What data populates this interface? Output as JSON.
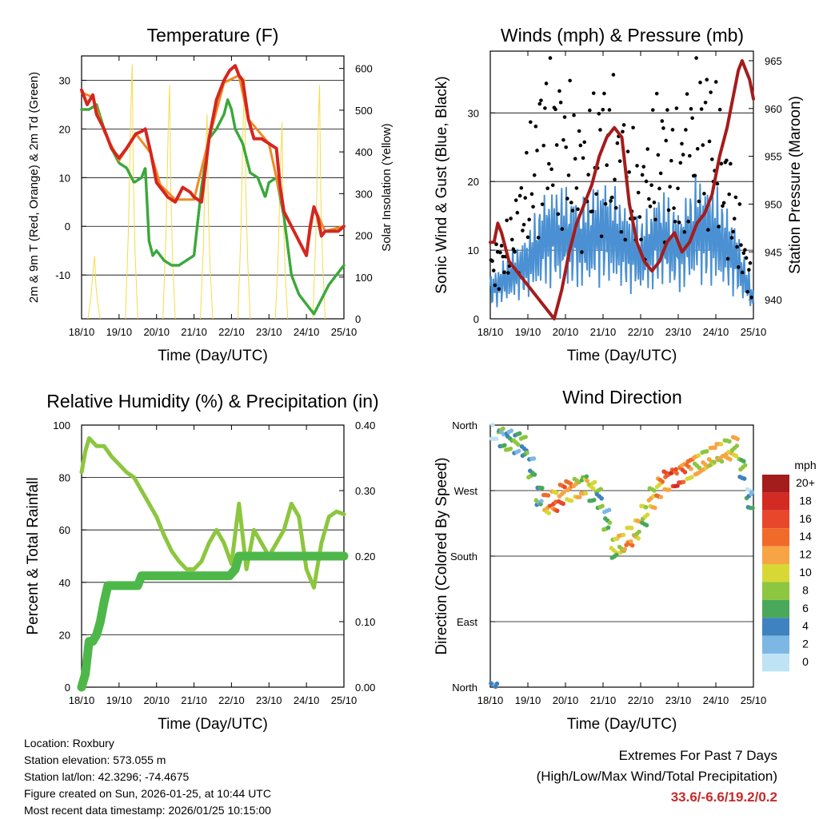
{
  "days": [
    "18/10",
    "19/10",
    "20/10",
    "21/10",
    "22/10",
    "23/10",
    "24/10",
    "25/10"
  ],
  "x_axis_label": "Time (Day/UTC)",
  "chart_data": [
    {
      "id": "temperature",
      "type": "line",
      "title": "Temperature (F)",
      "ylabel_left": "2m & 9m T (Red, Orange) & 2m Td (Green)",
      "ylabel_right": "Solar Insolation (Yellow)",
      "ylim_left": [
        -19,
        35
      ],
      "ylim_right": [
        0,
        630
      ],
      "yticks_left": [
        -10,
        0,
        10,
        20,
        30
      ],
      "yticks_right": [
        0,
        100,
        200,
        300,
        400,
        500,
        600
      ],
      "gridlines": [
        -10,
        0,
        10,
        20,
        30
      ],
      "x_range_days": [
        0,
        7
      ],
      "series": [
        {
          "name": "2m T",
          "color": "#d4271f",
          "x": [
            0,
            0.15,
            0.3,
            0.4,
            0.6,
            0.8,
            1.0,
            1.2,
            1.45,
            1.6,
            1.7,
            1.85,
            2.0,
            2.1,
            2.3,
            2.5,
            2.7,
            2.9,
            3.0,
            3.2,
            3.4,
            3.6,
            3.8,
            3.95,
            4.1,
            4.2,
            4.3,
            4.45,
            4.6,
            4.8,
            5.0,
            5.2,
            5.3,
            5.4,
            5.6,
            5.8,
            6.0,
            6.1,
            6.2,
            6.3,
            6.4,
            6.5,
            6.7,
            6.85,
            7.0
          ],
          "y": [
            28,
            25,
            27,
            23,
            20,
            16,
            14,
            16,
            19,
            19.5,
            20,
            15,
            9,
            8,
            6,
            5,
            8,
            7,
            6,
            5,
            18,
            26,
            30,
            32,
            33,
            31,
            30,
            22,
            18,
            18,
            17,
            16,
            8,
            3,
            0,
            -3,
            -6,
            0,
            4,
            2,
            -2,
            -1,
            -1,
            -1,
            0
          ]
        },
        {
          "name": "9m T",
          "color": "#f08a24",
          "x": [
            0,
            0.3,
            0.6,
            1.0,
            1.45,
            1.85,
            2.1,
            2.5,
            3.0,
            3.4,
            3.8,
            4.2,
            4.45,
            5.0,
            5.4,
            6.0,
            6.2,
            6.5,
            7.0
          ],
          "y": [
            27.5,
            26.5,
            19.5,
            13.5,
            19,
            15,
            8.5,
            5.5,
            5.5,
            18,
            29.5,
            31,
            22,
            17,
            3,
            -6,
            4,
            -1,
            0
          ]
        },
        {
          "name": "2m Td",
          "color": "#3aa83a",
          "style": "dotted",
          "x": [
            0,
            0.2,
            0.4,
            0.6,
            0.8,
            1.0,
            1.2,
            1.4,
            1.6,
            1.7,
            1.8,
            1.9,
            2.0,
            2.2,
            2.4,
            2.6,
            2.8,
            3.0,
            3.2,
            3.4,
            3.6,
            3.8,
            3.9,
            4.0,
            4.1,
            4.3,
            4.5,
            4.7,
            4.9,
            5.0,
            5.2,
            5.4,
            5.6,
            5.8,
            6.0,
            6.2,
            6.4,
            6.6,
            6.8,
            7.0
          ],
          "y": [
            24,
            24,
            25,
            20,
            16,
            13,
            12,
            9,
            10,
            12,
            -3,
            -6,
            -5,
            -7,
            -8,
            -8,
            -7,
            -6,
            8,
            18,
            20,
            23,
            26,
            24,
            20,
            17,
            11,
            10,
            6,
            9,
            10,
            2,
            -10,
            -14,
            -16,
            -18,
            -15,
            -12,
            -10,
            -8
          ]
        },
        {
          "name": "Solar Insolation",
          "color": "#f2dc4a",
          "axis": "right",
          "peaks_x": [
            0.35,
            1.35,
            2.35,
            3.35,
            4.35,
            5.35,
            6.35
          ],
          "peaks_y": [
            150,
            610,
            560,
            490,
            580,
            470,
            560
          ]
        }
      ]
    },
    {
      "id": "winds",
      "type": "line",
      "title": "Winds (mph) & Pressure (mb)",
      "ylabel_left": "Sonic Wind & Gust (Blue, Black)",
      "ylabel_right": "Station Pressure (Maroon)",
      "ylim_left": [
        0,
        39
      ],
      "ylim_right": [
        938,
        966
      ],
      "yticks_left": [
        0,
        10,
        20,
        30
      ],
      "yticks_right": [
        940,
        945,
        950,
        955,
        960,
        965
      ],
      "gridlines": [
        10,
        20,
        30
      ],
      "x_range_days": [
        0,
        7
      ],
      "series": [
        {
          "name": "Sonic Wind",
          "color": "#4a90d2",
          "x": [
            0,
            0.5,
            1.0,
            1.5,
            2.0,
            2.5,
            3.0,
            3.5,
            4.0,
            4.5,
            5.0,
            5.5,
            6.0,
            6.5,
            7.0
          ],
          "y": [
            4,
            6,
            8,
            12,
            12,
            11,
            13,
            11,
            9,
            12,
            10,
            13,
            12,
            9,
            3
          ]
        },
        {
          "name": "Gust",
          "color": "#000000",
          "x": [
            0,
            0.5,
            1.0,
            1.5,
            2.0,
            2.5,
            3.0,
            3.5,
            4.0,
            4.5,
            5.0,
            5.5,
            6.0,
            6.5,
            7.0
          ],
          "y": [
            7,
            10,
            18,
            28,
            24,
            20,
            25,
            22,
            16,
            24,
            20,
            28,
            24,
            14,
            4
          ]
        },
        {
          "name": "Station Pressure",
          "color": "#a51c1c",
          "axis": "right",
          "x": [
            0,
            0.1,
            0.2,
            0.3,
            0.5,
            0.7,
            0.9,
            1.1,
            1.3,
            1.5,
            1.7,
            1.9,
            2.1,
            2.3,
            2.5,
            2.7,
            2.9,
            3.1,
            3.3,
            3.5,
            3.7,
            3.9,
            4.1,
            4.3,
            4.5,
            4.7,
            4.9,
            5.1,
            5.3,
            5.5,
            5.7,
            5.9,
            6.1,
            6.3,
            6.5,
            6.6,
            6.7,
            6.9,
            7.0
          ],
          "y": [
            946,
            946,
            948,
            947,
            944,
            943,
            942,
            941,
            940,
            939,
            938,
            941,
            945,
            948,
            950,
            952,
            955,
            957,
            958,
            957,
            950,
            946,
            944,
            943,
            944,
            946,
            947,
            945,
            946,
            948,
            949,
            951,
            955,
            958,
            962,
            964,
            965,
            963,
            961
          ]
        }
      ]
    },
    {
      "id": "humidity",
      "type": "line",
      "title": "Relative Humidity (%) & Precipitation (in)",
      "ylabel_left": "Percent & Total Rainfall",
      "ylim_left": [
        0,
        100
      ],
      "ylim_right": [
        0,
        0.4
      ],
      "yticks_left": [
        0,
        20,
        40,
        60,
        80,
        100
      ],
      "yticks_right": [
        0.0,
        0.1,
        0.2,
        0.3,
        0.4
      ],
      "yticks_right_labels": [
        "0.00",
        "0.10",
        "0.20",
        "0.30",
        "0.40"
      ],
      "gridlines": [
        20,
        40,
        60,
        80
      ],
      "x_range_days": [
        0,
        7
      ],
      "series": [
        {
          "name": "Relative Humidity",
          "color": "#8cc63f",
          "x": [
            0,
            0.1,
            0.2,
            0.4,
            0.6,
            0.8,
            1.0,
            1.2,
            1.4,
            1.6,
            1.8,
            2.0,
            2.2,
            2.4,
            2.6,
            2.8,
            3.0,
            3.2,
            3.4,
            3.6,
            3.8,
            4.0,
            4.2,
            4.4,
            4.6,
            4.8,
            5.0,
            5.2,
            5.4,
            5.6,
            5.8,
            6.0,
            6.2,
            6.4,
            6.6,
            6.8,
            7.0
          ],
          "y": [
            82,
            90,
            95,
            92,
            92,
            88,
            85,
            82,
            80,
            75,
            70,
            65,
            58,
            52,
            48,
            45,
            45,
            48,
            55,
            60,
            55,
            47,
            70,
            45,
            60,
            55,
            50,
            55,
            60,
            70,
            65,
            45,
            38,
            55,
            65,
            67,
            66
          ]
        },
        {
          "name": "Total Precipitation",
          "color": "#4db849",
          "axis": "right",
          "x": [
            0,
            0.1,
            0.2,
            0.3,
            0.4,
            0.5,
            0.6,
            0.7,
            0.9,
            1.5,
            1.6,
            3.95,
            4.1,
            4.2,
            7.0
          ],
          "y": [
            0.0,
            0.02,
            0.07,
            0.07,
            0.08,
            0.1,
            0.13,
            0.155,
            0.155,
            0.155,
            0.17,
            0.17,
            0.18,
            0.2,
            0.2
          ]
        }
      ]
    },
    {
      "id": "wind_direction",
      "type": "scatter",
      "title": "Wind Direction",
      "ylabel_left": "Direction (Colored By Speed)",
      "yticks_labels": [
        "North",
        "East",
        "South",
        "West",
        "North"
      ],
      "yticks_deg": [
        0,
        90,
        180,
        270,
        360
      ],
      "ylim": [
        0,
        360
      ],
      "x_range_days": [
        0,
        7
      ],
      "colorbar_title": "mph",
      "colorbar_labels": [
        "20+",
        "18",
        "16",
        "14",
        "12",
        "10",
        "8",
        "6",
        "4",
        "2",
        "0"
      ],
      "colorbar_colors": [
        "#a51c1c",
        "#d42a24",
        "#e8472b",
        "#f06a2a",
        "#f7a445",
        "#d7d836",
        "#8dc63f",
        "#4aa85a",
        "#3e82c0",
        "#7db8e4",
        "#bfe3f5"
      ],
      "series": [
        {
          "name": "Wind Direction",
          "x": [
            0.1,
            0.3,
            0.5,
            0.7,
            0.9,
            1.1,
            1.3,
            1.5,
            1.7,
            1.9,
            2.1,
            2.3,
            2.5,
            2.7,
            2.9,
            3.1,
            3.3,
            3.5,
            3.7,
            3.9,
            4.1,
            4.3,
            4.5,
            4.7,
            4.9,
            5.1,
            5.3,
            5.5,
            5.7,
            5.9,
            6.1,
            6.3,
            6.5,
            6.7,
            6.9
          ],
          "y": [
            355,
            345,
            340,
            335,
            330,
            300,
            260,
            250,
            255,
            265,
            270,
            275,
            280,
            270,
            260,
            230,
            190,
            195,
            205,
            215,
            235,
            260,
            275,
            285,
            290,
            295,
            300,
            305,
            310,
            315,
            320,
            325,
            330,
            300,
            260
          ],
          "speed": [
            2,
            5,
            5,
            5,
            6,
            5,
            5,
            12,
            13,
            14,
            12,
            10,
            9,
            8,
            6,
            5,
            8,
            10,
            12,
            10,
            8,
            10,
            12,
            14,
            16,
            14,
            12,
            10,
            10,
            10,
            10,
            10,
            10,
            6,
            3
          ]
        }
      ]
    }
  ],
  "info": {
    "location": "Location: Roxbury",
    "elevation": "Station elevation: 573.055 m",
    "latlon": "Station lat/lon: 42.3296; -74.4675",
    "created": "Figure created on Sun, 2026-01-25, at 10:44 UTC",
    "recent": "Most recent data timestamp: 2026/01/25 10:15:00"
  },
  "extremes": {
    "title": "Extremes For Past 7 Days",
    "subtitle": "(High/Low/Max Wind/Total Precipitation)",
    "values": "33.6/-6.6/19.2/0.2"
  }
}
